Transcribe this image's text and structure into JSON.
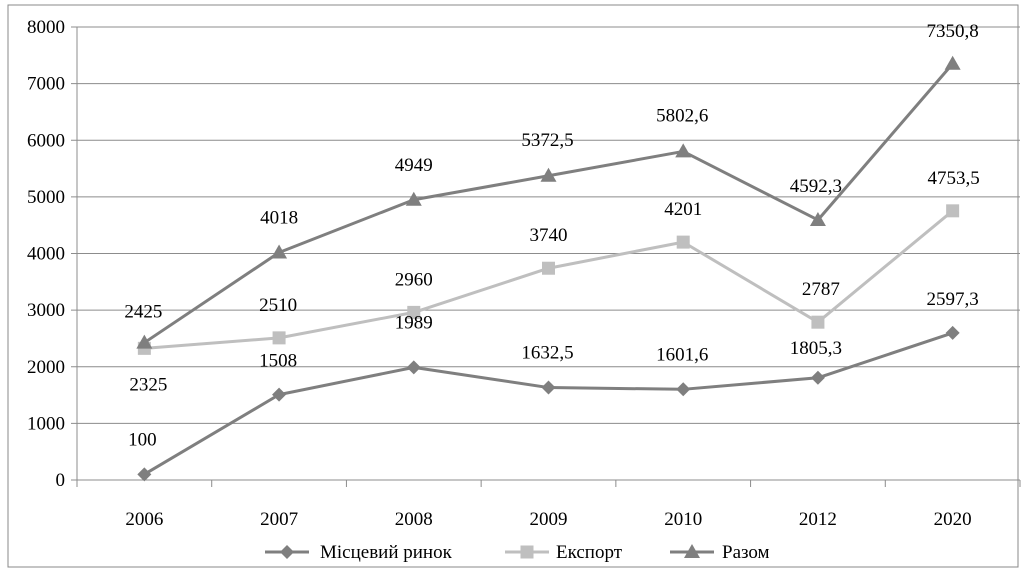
{
  "chart_data": {
    "type": "line",
    "categories": [
      "2006",
      "2007",
      "2008",
      "2009",
      "2010",
      "2012",
      "2020"
    ],
    "ylim": [
      0,
      8000
    ],
    "yticks": [
      0,
      1000,
      2000,
      3000,
      4000,
      5000,
      6000,
      7000,
      8000
    ],
    "grid": "horizontal",
    "legend_position": "bottom",
    "series": [
      {
        "name": "Місцевий ринок",
        "marker": "diamond",
        "color": "#7f7f7f",
        "values": [
          100,
          1508,
          1989,
          1632.5,
          1601.6,
          1805.3,
          2597.3
        ],
        "labels": [
          "100",
          "1508",
          "1989",
          "1632,5",
          "1601,6",
          "1805,3",
          "2597,3"
        ]
      },
      {
        "name": "Експорт",
        "marker": "square",
        "color": "#bfbfbf",
        "values": [
          2325,
          2510,
          2960,
          3740,
          4201,
          2787,
          4753.5
        ],
        "labels": [
          "2325",
          "2510",
          "2960",
          "3740",
          "4201",
          "2787",
          "4753,5"
        ]
      },
      {
        "name": "Разом",
        "marker": "triangle",
        "color": "#7f7f7f",
        "values": [
          2425,
          4018,
          4949,
          5372.5,
          5802.6,
          4592.3,
          7350.8
        ],
        "labels": [
          "2425",
          "4018",
          "4949",
          "5372,5",
          "5802,6",
          "4592,3",
          "7350,8"
        ]
      }
    ]
  }
}
